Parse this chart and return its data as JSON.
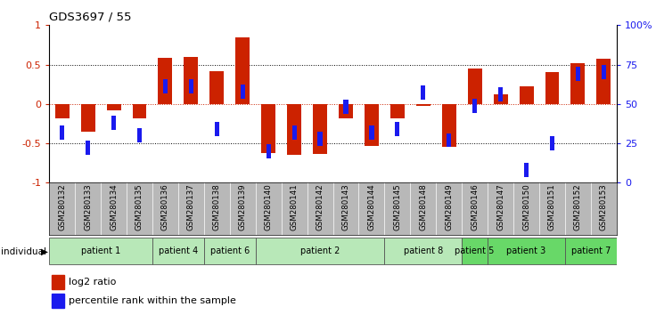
{
  "title": "GDS3697 / 55",
  "samples": [
    "GSM280132",
    "GSM280133",
    "GSM280134",
    "GSM280135",
    "GSM280136",
    "GSM280137",
    "GSM280138",
    "GSM280139",
    "GSM280140",
    "GSM280141",
    "GSM280142",
    "GSM280143",
    "GSM280144",
    "GSM280145",
    "GSM280148",
    "GSM280149",
    "GSM280146",
    "GSM280147",
    "GSM280150",
    "GSM280151",
    "GSM280152",
    "GSM280153"
  ],
  "log2_ratio": [
    -0.18,
    -0.35,
    -0.08,
    -0.18,
    0.58,
    0.6,
    0.42,
    0.85,
    -0.62,
    -0.65,
    -0.63,
    -0.18,
    -0.53,
    -0.18,
    -0.03,
    -0.55,
    0.45,
    0.12,
    0.22,
    0.4,
    0.52,
    0.57
  ],
  "percentile_val": [
    -0.36,
    -0.56,
    -0.24,
    -0.4,
    0.22,
    0.22,
    -0.32,
    0.16,
    -0.6,
    -0.36,
    -0.44,
    -0.04,
    -0.36,
    -0.32,
    0.14,
    -0.46,
    -0.02,
    0.12,
    -0.84,
    -0.5,
    0.38,
    0.4
  ],
  "patients": [
    {
      "label": "patient 1",
      "start": 0,
      "end": 4,
      "light": true
    },
    {
      "label": "patient 4",
      "start": 4,
      "end": 6,
      "light": true
    },
    {
      "label": "patient 6",
      "start": 6,
      "end": 8,
      "light": true
    },
    {
      "label": "patient 2",
      "start": 8,
      "end": 13,
      "light": true
    },
    {
      "label": "patient 8",
      "start": 13,
      "end": 16,
      "light": true
    },
    {
      "label": "patient 5",
      "start": 16,
      "end": 17,
      "light": false
    },
    {
      "label": "patient 3",
      "start": 17,
      "end": 20,
      "light": false
    },
    {
      "label": "patient 7",
      "start": 20,
      "end": 22,
      "light": false
    }
  ],
  "bar_color_red": "#cc2200",
  "bar_color_blue": "#1a1aee",
  "ylim": [
    -1,
    1
  ],
  "yticks": [
    -1,
    -0.5,
    0,
    0.5,
    1
  ],
  "y2ticks": [
    0,
    25,
    50,
    75,
    100
  ],
  "light_green": "#b8e8b8",
  "bright_green": "#68d868",
  "sample_bg": "#b8b8b8",
  "bar_width": 0.55,
  "blue_sq_size": 0.18
}
